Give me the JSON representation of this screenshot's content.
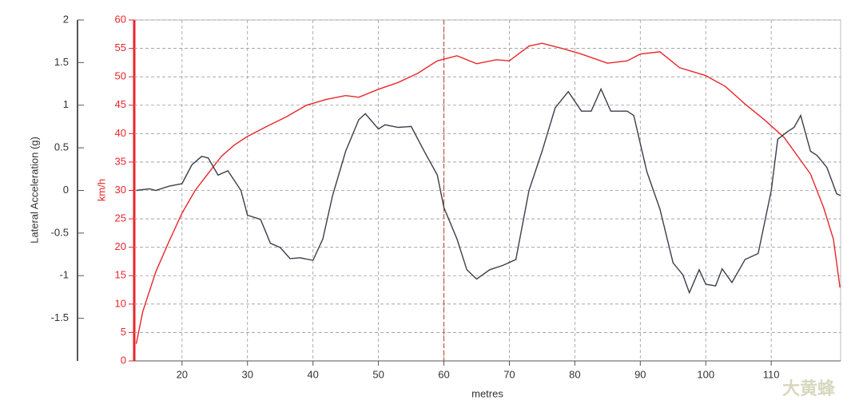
{
  "chart_data": {
    "type": "line",
    "x_label": "metres",
    "y_label": "Lateral Acceleration (g)",
    "y2_label": "km/h",
    "watermark": "大黄蜂",
    "xlim": [
      12.7,
      120.6
    ],
    "xticks": [
      20,
      30,
      40,
      50,
      60,
      70,
      80,
      90,
      100,
      110
    ],
    "ylim": [
      -2,
      2
    ],
    "yticks": [
      -1.5,
      -1,
      -0.5,
      0,
      0.5,
      1,
      1.5,
      2
    ],
    "y2lim": [
      0,
      60
    ],
    "y2ticks": [
      0,
      5,
      10,
      15,
      20,
      25,
      30,
      35,
      40,
      45,
      50,
      55,
      60
    ],
    "grid": true,
    "cursor_x": 60,
    "series": [
      {
        "color": "#e8262b",
        "axis": "y2",
        "x": [
          13,
          14,
          16,
          18,
          20,
          22,
          24,
          26,
          28,
          30,
          33,
          36,
          39,
          42,
          45,
          47,
          50,
          53,
          56,
          59,
          62,
          65,
          68,
          70,
          73,
          75,
          78,
          81,
          85,
          88,
          90,
          93,
          96,
          100,
          103,
          106,
          109,
          112,
          114,
          116,
          118,
          119.5,
          120.5
        ],
        "values": [
          3,
          8.7,
          15.7,
          21,
          26,
          30,
          33,
          36,
          38,
          39.5,
          41.3,
          43,
          45,
          46,
          46.7,
          46.4,
          47.8,
          49,
          50.6,
          52.8,
          53.7,
          52.3,
          53,
          52.8,
          55.4,
          55.9,
          55,
          54,
          52.4,
          52.8,
          54,
          54.4,
          51.6,
          50.2,
          48.3,
          45.2,
          42.4,
          39.3,
          36.1,
          32.9,
          27,
          21.4,
          12.9
        ]
      },
      {
        "color": "#3a3f4a",
        "x": [
          13,
          15,
          16,
          18,
          20,
          21.5,
          23,
          24,
          25.5,
          27,
          29,
          30,
          32,
          33.5,
          35,
          36.5,
          38,
          40,
          41.5,
          43,
          45,
          47,
          48,
          50,
          51,
          53,
          55,
          57,
          59,
          60,
          62,
          63.5,
          65,
          67,
          69,
          71,
          73,
          75,
          77,
          79,
          81,
          82.5,
          84,
          85.5,
          88,
          89,
          91,
          93,
          95,
          96.5,
          97.5,
          99,
          100,
          101.5,
          102.5,
          104,
          106,
          108,
          110,
          111,
          112.5,
          113.5,
          114.5,
          116,
          117,
          118.5,
          120,
          120.6
        ],
        "values": [
          0,
          0.02,
          0,
          0.05,
          0.08,
          0.3,
          0.4,
          0.38,
          0.18,
          0.23,
          0,
          -0.29,
          -0.34,
          -0.62,
          -0.67,
          -0.8,
          -0.79,
          -0.82,
          -0.57,
          -0.06,
          0.46,
          0.83,
          0.9,
          0.72,
          0.77,
          0.74,
          0.75,
          0.46,
          0.18,
          -0.2,
          -0.57,
          -0.93,
          -1.04,
          -0.93,
          -0.88,
          -0.81,
          0,
          0.46,
          0.97,
          1.16,
          0.93,
          0.93,
          1.19,
          0.93,
          0.93,
          0.88,
          0.22,
          -0.22,
          -0.85,
          -0.99,
          -1.2,
          -0.93,
          -1.1,
          -1.12,
          -0.92,
          -1.08,
          -0.81,
          -0.74,
          0,
          0.6,
          0.69,
          0.74,
          0.88,
          0.46,
          0.41,
          0.27,
          -0.04,
          -0.06
        ]
      }
    ]
  }
}
